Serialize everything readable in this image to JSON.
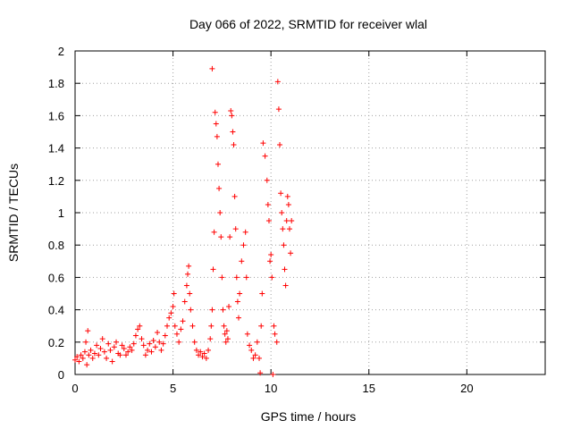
{
  "chart_data": {
    "type": "scatter",
    "title": "Day 066 of 2022, SRMTID for receiver wlal",
    "xlabel": "GPS time / hours",
    "ylabel": "SRMTID / TECUs",
    "xlim": [
      0,
      24
    ],
    "ylim": [
      0,
      2
    ],
    "xticks": [
      0,
      5,
      10,
      15,
      20
    ],
    "yticks": [
      0,
      0.2,
      0.4,
      0.6,
      0.8,
      1,
      1.2,
      1.4,
      1.6,
      1.8,
      2
    ],
    "xtick_labels": [
      "0",
      "5",
      "10",
      "15",
      "20"
    ],
    "ytick_labels": [
      "0",
      "0.2",
      "0.4",
      "0.6",
      "0.8",
      "1",
      "1.2",
      "1.4",
      "1.6",
      "1.8",
      "2"
    ],
    "grid": true,
    "marker": "+",
    "color": "#ff0000",
    "series": [
      {
        "name": "SRMTID",
        "points": [
          [
            0.0,
            0.09
          ],
          [
            0.1,
            0.11
          ],
          [
            0.2,
            0.08
          ],
          [
            0.3,
            0.12
          ],
          [
            0.4,
            0.1
          ],
          [
            0.5,
            0.14
          ],
          [
            0.55,
            0.2
          ],
          [
            0.6,
            0.06
          ],
          [
            0.65,
            0.27
          ],
          [
            0.7,
            0.12
          ],
          [
            0.8,
            0.15
          ],
          [
            0.9,
            0.1
          ],
          [
            1.0,
            0.13
          ],
          [
            1.1,
            0.18
          ],
          [
            1.2,
            0.12
          ],
          [
            1.3,
            0.16
          ],
          [
            1.4,
            0.22
          ],
          [
            1.5,
            0.14
          ],
          [
            1.6,
            0.1
          ],
          [
            1.7,
            0.19
          ],
          [
            1.8,
            0.15
          ],
          [
            1.9,
            0.08
          ],
          [
            2.0,
            0.17
          ],
          [
            2.1,
            0.2
          ],
          [
            2.2,
            0.13
          ],
          [
            2.3,
            0.12
          ],
          [
            2.4,
            0.18
          ],
          [
            2.5,
            0.16
          ],
          [
            2.6,
            0.12
          ],
          [
            2.7,
            0.14
          ],
          [
            2.8,
            0.17
          ],
          [
            2.9,
            0.15
          ],
          [
            3.0,
            0.19
          ],
          [
            3.1,
            0.24
          ],
          [
            3.2,
            0.28
          ],
          [
            3.3,
            0.3
          ],
          [
            3.4,
            0.22
          ],
          [
            3.5,
            0.18
          ],
          [
            3.6,
            0.12
          ],
          [
            3.7,
            0.15
          ],
          [
            3.8,
            0.19
          ],
          [
            3.9,
            0.14
          ],
          [
            4.0,
            0.21
          ],
          [
            4.1,
            0.17
          ],
          [
            4.2,
            0.26
          ],
          [
            4.3,
            0.2
          ],
          [
            4.4,
            0.15
          ],
          [
            4.5,
            0.19
          ],
          [
            4.6,
            0.24
          ],
          [
            4.7,
            0.3
          ],
          [
            4.8,
            0.35
          ],
          [
            4.9,
            0.38
          ],
          [
            5.0,
            0.42
          ],
          [
            5.05,
            0.5
          ],
          [
            5.1,
            0.3
          ],
          [
            5.2,
            0.25
          ],
          [
            5.3,
            0.2
          ],
          [
            5.4,
            0.28
          ],
          [
            5.5,
            0.33
          ],
          [
            5.6,
            0.45
          ],
          [
            5.7,
            0.55
          ],
          [
            5.75,
            0.62
          ],
          [
            5.8,
            0.67
          ],
          [
            5.85,
            0.5
          ],
          [
            5.9,
            0.4
          ],
          [
            6.0,
            0.3
          ],
          [
            6.1,
            0.2
          ],
          [
            6.2,
            0.15
          ],
          [
            6.3,
            0.12
          ],
          [
            6.4,
            0.14
          ],
          [
            6.5,
            0.11
          ],
          [
            6.6,
            0.13
          ],
          [
            6.7,
            0.1
          ],
          [
            6.8,
            0.15
          ],
          [
            6.9,
            0.22
          ],
          [
            6.95,
            0.3
          ],
          [
            7.0,
            1.89
          ],
          [
            7.0,
            0.4
          ],
          [
            7.05,
            0.65
          ],
          [
            7.1,
            0.88
          ],
          [
            7.15,
            1.62
          ],
          [
            7.2,
            1.55
          ],
          [
            7.25,
            1.47
          ],
          [
            7.3,
            1.3
          ],
          [
            7.35,
            1.15
          ],
          [
            7.4,
            1.0
          ],
          [
            7.45,
            0.85
          ],
          [
            7.5,
            0.6
          ],
          [
            7.55,
            0.4
          ],
          [
            7.6,
            0.3
          ],
          [
            7.65,
            0.25
          ],
          [
            7.7,
            0.2
          ],
          [
            7.75,
            0.27
          ],
          [
            7.8,
            0.22
          ],
          [
            7.85,
            0.42
          ],
          [
            7.9,
            0.85
          ],
          [
            7.95,
            1.63
          ],
          [
            8.0,
            1.6
          ],
          [
            8.05,
            1.5
          ],
          [
            8.1,
            1.42
          ],
          [
            8.15,
            1.1
          ],
          [
            8.2,
            0.9
          ],
          [
            8.25,
            0.6
          ],
          [
            8.3,
            0.45
          ],
          [
            8.35,
            0.35
          ],
          [
            8.4,
            0.5
          ],
          [
            8.5,
            0.7
          ],
          [
            8.6,
            0.8
          ],
          [
            8.7,
            0.88
          ],
          [
            8.75,
            0.6
          ],
          [
            8.8,
            0.25
          ],
          [
            8.9,
            0.18
          ],
          [
            9.0,
            0.15
          ],
          [
            9.1,
            0.1
          ],
          [
            9.2,
            0.12
          ],
          [
            9.3,
            0.2
          ],
          [
            9.4,
            0.1
          ],
          [
            9.45,
            0.01
          ],
          [
            9.5,
            0.3
          ],
          [
            9.55,
            0.5
          ],
          [
            9.6,
            1.43
          ],
          [
            9.7,
            1.35
          ],
          [
            9.8,
            1.2
          ],
          [
            9.85,
            1.05
          ],
          [
            9.9,
            0.95
          ],
          [
            9.95,
            0.7
          ],
          [
            10.0,
            0.74
          ],
          [
            10.05,
            0.6
          ],
          [
            10.1,
            0.0
          ],
          [
            10.15,
            0.3
          ],
          [
            10.2,
            0.25
          ],
          [
            10.3,
            0.2
          ],
          [
            10.35,
            1.81
          ],
          [
            10.4,
            1.64
          ],
          [
            10.45,
            1.42
          ],
          [
            10.5,
            1.12
          ],
          [
            10.55,
            1.0
          ],
          [
            10.6,
            0.9
          ],
          [
            10.65,
            0.8
          ],
          [
            10.7,
            0.65
          ],
          [
            10.75,
            0.55
          ],
          [
            10.8,
            0.95
          ],
          [
            10.85,
            1.1
          ],
          [
            10.9,
            1.05
          ],
          [
            10.95,
            0.9
          ],
          [
            11.0,
            0.75
          ],
          [
            11.05,
            0.95
          ]
        ]
      }
    ]
  }
}
